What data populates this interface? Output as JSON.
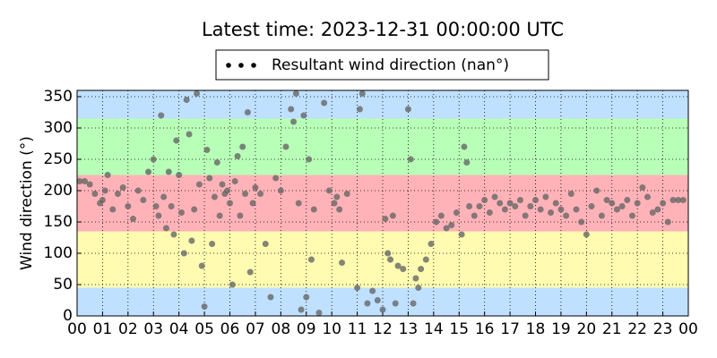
{
  "chart_data": {
    "type": "scatter",
    "title": "Latest time: 2023-12-31 00:00:00 UTC",
    "y_label": "Wind direction (°)",
    "x": [
      0.1,
      0.3,
      0.5,
      0.7,
      0.9,
      1.0,
      1.1,
      1.2,
      1.4,
      1.6,
      1.8,
      2.0,
      2.2,
      2.4,
      2.6,
      2.8,
      3.0,
      3.1,
      3.2,
      3.3,
      3.4,
      3.5,
      3.6,
      3.7,
      3.8,
      3.9,
      4.0,
      4.1,
      4.2,
      4.3,
      4.4,
      4.5,
      4.6,
      4.7,
      4.8,
      4.9,
      5.0,
      5.1,
      5.2,
      5.3,
      5.4,
      5.5,
      5.6,
      5.7,
      5.8,
      5.9,
      6.0,
      6.1,
      6.2,
      6.3,
      6.4,
      6.5,
      6.6,
      6.7,
      6.8,
      6.9,
      7.0,
      7.2,
      7.4,
      7.6,
      7.8,
      8.0,
      8.2,
      8.4,
      8.5,
      8.6,
      8.7,
      8.8,
      8.9,
      9.0,
      9.1,
      9.2,
      9.3,
      9.5,
      9.7,
      9.9,
      10.1,
      10.2,
      10.3,
      10.4,
      10.6,
      11.0,
      11.1,
      11.2,
      11.4,
      11.6,
      11.8,
      12.0,
      12.1,
      12.2,
      12.3,
      12.4,
      12.5,
      12.6,
      12.8,
      13.0,
      13.1,
      13.2,
      13.3,
      13.4,
      13.5,
      13.7,
      13.9,
      14.1,
      14.3,
      14.5,
      14.7,
      14.9,
      15.1,
      15.2,
      15.3,
      15.4,
      15.6,
      15.8,
      16.0,
      16.2,
      16.4,
      16.6,
      16.8,
      17.0,
      17.2,
      17.4,
      17.6,
      17.8,
      18.0,
      18.2,
      18.4,
      18.6,
      18.8,
      19.0,
      19.2,
      19.4,
      19.6,
      19.8,
      20.0,
      20.2,
      20.4,
      20.6,
      20.8,
      21.0,
      21.2,
      21.4,
      21.6,
      21.8,
      22.0,
      22.2,
      22.4,
      22.6,
      22.8,
      23.0,
      23.2,
      23.4,
      23.6,
      23.8
    ],
    "series": [
      {
        "name": "Resultant wind direction (nan°)",
        "color": "#666666",
        "values": [
          215,
          215,
          210,
          195,
          180,
          185,
          200,
          225,
          170,
          195,
          205,
          175,
          155,
          200,
          185,
          230,
          250,
          175,
          160,
          320,
          190,
          140,
          230,
          175,
          130,
          280,
          225,
          165,
          100,
          345,
          290,
          120,
          170,
          355,
          210,
          80,
          15,
          265,
          220,
          115,
          190,
          245,
          160,
          210,
          195,
          200,
          180,
          50,
          215,
          255,
          160,
          270,
          195,
          325,
          70,
          180,
          205,
          195,
          115,
          30,
          220,
          200,
          270,
          330,
          310,
          355,
          180,
          10,
          320,
          30,
          250,
          90,
          170,
          5,
          340,
          200,
          180,
          190,
          170,
          85,
          195,
          45,
          330,
          355,
          20,
          40,
          25,
          10,
          155,
          100,
          90,
          160,
          20,
          80,
          75,
          330,
          250,
          20,
          60,
          45,
          75,
          90,
          115,
          150,
          160,
          140,
          145,
          165,
          130,
          270,
          245,
          175,
          160,
          175,
          185,
          165,
          190,
          180,
          170,
          180,
          175,
          185,
          160,
          175,
          185,
          170,
          190,
          165,
          180,
          170,
          160,
          195,
          170,
          150,
          130,
          175,
          200,
          160,
          185,
          180,
          170,
          175,
          185,
          160,
          180,
          205,
          190,
          165,
          170,
          180,
          150,
          185,
          185,
          185
        ]
      }
    ],
    "legend_marker_color": "#000000",
    "bands": [
      {
        "from": 0,
        "to": 45,
        "color": "#bfe0ff"
      },
      {
        "from": 45,
        "to": 135,
        "color": "#fffbb0"
      },
      {
        "from": 135,
        "to": 225,
        "color": "#ffb3b8"
      },
      {
        "from": 225,
        "to": 315,
        "color": "#b8ffb8"
      },
      {
        "from": 315,
        "to": 360,
        "color": "#bfe0ff"
      }
    ],
    "xlim": [
      0,
      24
    ],
    "xticks": [
      {
        "value": 0,
        "label": "00"
      },
      {
        "value": 1,
        "label": "01"
      },
      {
        "value": 2,
        "label": "02"
      },
      {
        "value": 3,
        "label": "03"
      },
      {
        "value": 4,
        "label": "04"
      },
      {
        "value": 5,
        "label": "05"
      },
      {
        "value": 6,
        "label": "06"
      },
      {
        "value": 7,
        "label": "07"
      },
      {
        "value": 8,
        "label": "08"
      },
      {
        "value": 9,
        "label": "09"
      },
      {
        "value": 10,
        "label": "10"
      },
      {
        "value": 11,
        "label": "11"
      },
      {
        "value": 12,
        "label": "12"
      },
      {
        "value": 13,
        "label": "13"
      },
      {
        "value": 14,
        "label": "14"
      },
      {
        "value": 15,
        "label": "15"
      },
      {
        "value": 16,
        "label": "16"
      },
      {
        "value": 17,
        "label": "17"
      },
      {
        "value": 18,
        "label": "18"
      },
      {
        "value": 19,
        "label": "19"
      },
      {
        "value": 20,
        "label": "20"
      },
      {
        "value": 21,
        "label": "21"
      },
      {
        "value": 22,
        "label": "22"
      },
      {
        "value": 23,
        "label": "23"
      },
      {
        "value": 24,
        "label": "00"
      }
    ],
    "ylim": [
      0,
      360
    ],
    "yticks": [
      0,
      50,
      100,
      150,
      200,
      250,
      300,
      350
    ],
    "grid": true
  }
}
